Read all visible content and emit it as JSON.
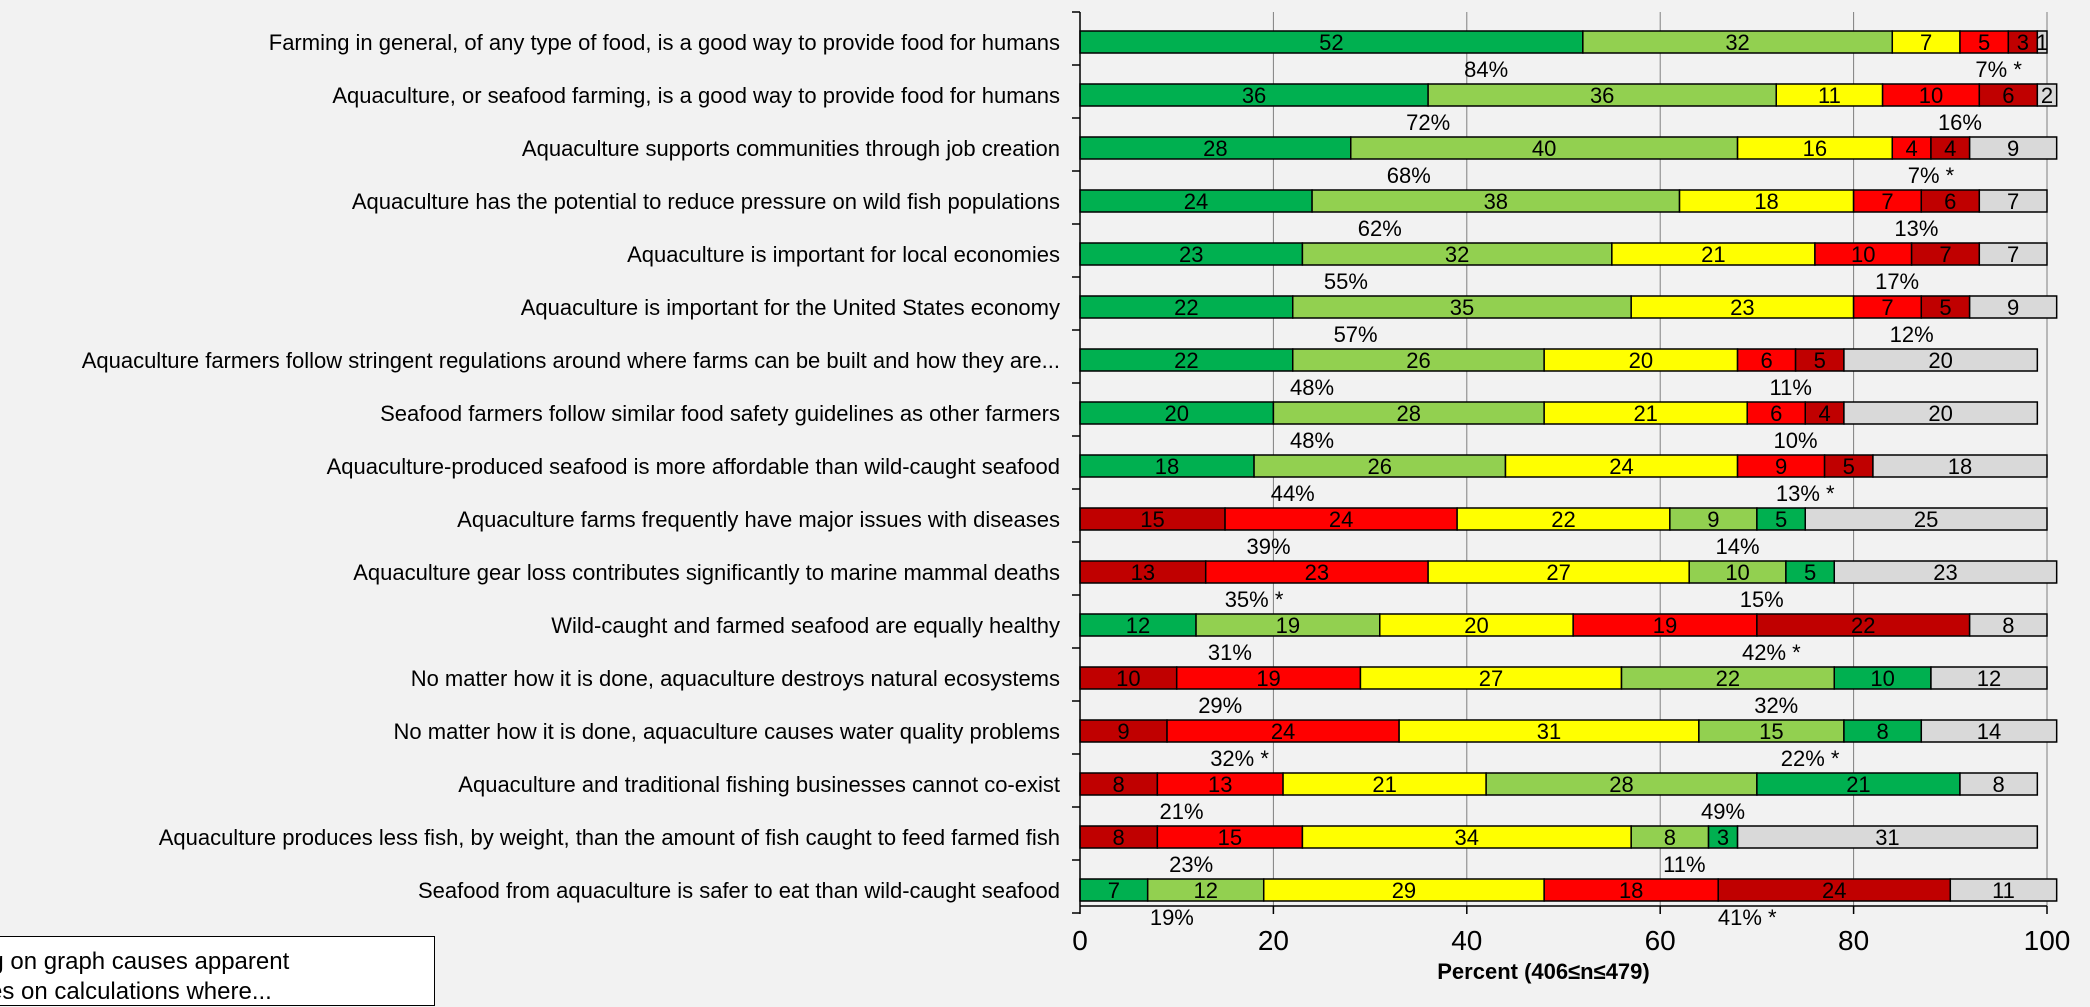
{
  "chart_data": {
    "type": "bar",
    "orientation": "horizontal",
    "stacked": true,
    "xlabel": "Percent (406≤n≤479)",
    "xlim": [
      0,
      100
    ],
    "xticks": [
      0,
      20,
      40,
      60,
      80,
      100
    ],
    "grid": true,
    "categories": [
      "Farming in general, of any type of food, is a good way to provide food for humans",
      "Aquaculture, or seafood farming, is a good way to provide food for humans",
      "Aquaculture supports communities through job creation",
      "Aquaculture has the potential to reduce pressure on wild fish populations",
      "Aquaculture is important for local economies",
      "Aquaculture is important for the United States economy",
      "Aquaculture farmers follow stringent regulations around where farms can be built and how they are...",
      "Seafood farmers follow similar food safety guidelines as other farmers",
      "Aquaculture-produced seafood is more affordable than wild-caught seafood",
      "Aquaculture farms frequently have major issues with diseases",
      "Aquaculture gear loss contributes significantly to marine mammal deaths",
      "Wild-caught and farmed seafood are equally healthy",
      "No matter how it is done, aquaculture destroys natural ecosystems",
      "No matter how it is done, aquaculture causes water quality problems",
      "Aquaculture and traditional fishing businesses cannot co-exist",
      "Aquaculture produces less fish, by weight, than the amount of fish caught to feed farmed fish",
      "Seafood from aquaculture is safer to eat than wild-caught seafood"
    ],
    "rows": [
      {
        "segments": [
          {
            "c": "dg",
            "v": 52
          },
          {
            "c": "lg",
            "v": 32
          },
          {
            "c": "y",
            "v": 7
          },
          {
            "c": "r",
            "v": 5
          },
          {
            "c": "dr",
            "v": 3
          },
          {
            "c": "gr",
            "v": 1
          }
        ],
        "left_sum": "84%",
        "right_sum": "7% *"
      },
      {
        "segments": [
          {
            "c": "dg",
            "v": 36
          },
          {
            "c": "lg",
            "v": 36
          },
          {
            "c": "y",
            "v": 11
          },
          {
            "c": "r",
            "v": 10
          },
          {
            "c": "dr",
            "v": 6
          },
          {
            "c": "gr",
            "v": 2
          }
        ],
        "left_sum": "72%",
        "right_sum": "16%"
      },
      {
        "segments": [
          {
            "c": "dg",
            "v": 28
          },
          {
            "c": "lg",
            "v": 40
          },
          {
            "c": "y",
            "v": 16
          },
          {
            "c": "r",
            "v": 4
          },
          {
            "c": "dr",
            "v": 4
          },
          {
            "c": "gr",
            "v": 9
          }
        ],
        "left_sum": "68%",
        "right_sum": "7% *"
      },
      {
        "segments": [
          {
            "c": "dg",
            "v": 24
          },
          {
            "c": "lg",
            "v": 38
          },
          {
            "c": "y",
            "v": 18
          },
          {
            "c": "r",
            "v": 7
          },
          {
            "c": "dr",
            "v": 6
          },
          {
            "c": "gr",
            "v": 7
          }
        ],
        "left_sum": "62%",
        "right_sum": "13%"
      },
      {
        "segments": [
          {
            "c": "dg",
            "v": 23
          },
          {
            "c": "lg",
            "v": 32
          },
          {
            "c": "y",
            "v": 21
          },
          {
            "c": "r",
            "v": 10
          },
          {
            "c": "dr",
            "v": 7
          },
          {
            "c": "gr",
            "v": 7
          }
        ],
        "left_sum": "55%",
        "right_sum": "17%"
      },
      {
        "segments": [
          {
            "c": "dg",
            "v": 22
          },
          {
            "c": "lg",
            "v": 35
          },
          {
            "c": "y",
            "v": 23
          },
          {
            "c": "r",
            "v": 7
          },
          {
            "c": "dr",
            "v": 5
          },
          {
            "c": "gr",
            "v": 9
          }
        ],
        "left_sum": "57%",
        "right_sum": "12%"
      },
      {
        "segments": [
          {
            "c": "dg",
            "v": 22
          },
          {
            "c": "lg",
            "v": 26
          },
          {
            "c": "y",
            "v": 20
          },
          {
            "c": "r",
            "v": 6
          },
          {
            "c": "dr",
            "v": 5
          },
          {
            "c": "gr",
            "v": 20
          }
        ],
        "left_sum": "48%",
        "right_sum": "11%"
      },
      {
        "segments": [
          {
            "c": "dg",
            "v": 20
          },
          {
            "c": "lg",
            "v": 28
          },
          {
            "c": "y",
            "v": 21
          },
          {
            "c": "r",
            "v": 6
          },
          {
            "c": "dr",
            "v": 4
          },
          {
            "c": "gr",
            "v": 20
          }
        ],
        "left_sum": "48%",
        "right_sum": "10%"
      },
      {
        "segments": [
          {
            "c": "dg",
            "v": 18
          },
          {
            "c": "lg",
            "v": 26
          },
          {
            "c": "y",
            "v": 24
          },
          {
            "c": "r",
            "v": 9
          },
          {
            "c": "dr",
            "v": 5
          },
          {
            "c": "gr",
            "v": 18
          }
        ],
        "left_sum": "44%",
        "right_sum": "13% *"
      },
      {
        "segments": [
          {
            "c": "dr",
            "v": 15
          },
          {
            "c": "r",
            "v": 24
          },
          {
            "c": "y",
            "v": 22
          },
          {
            "c": "lg",
            "v": 9
          },
          {
            "c": "dg",
            "v": 5
          },
          {
            "c": "gr",
            "v": 25
          }
        ],
        "left_sum": "39%",
        "right_sum": "14%"
      },
      {
        "segments": [
          {
            "c": "dr",
            "v": 13
          },
          {
            "c": "r",
            "v": 23
          },
          {
            "c": "y",
            "v": 27
          },
          {
            "c": "lg",
            "v": 10
          },
          {
            "c": "dg",
            "v": 5
          },
          {
            "c": "gr",
            "v": 23
          }
        ],
        "left_sum": "35% *",
        "right_sum": "15%"
      },
      {
        "segments": [
          {
            "c": "dg",
            "v": 12
          },
          {
            "c": "lg",
            "v": 19
          },
          {
            "c": "y",
            "v": 20
          },
          {
            "c": "r",
            "v": 19
          },
          {
            "c": "dr",
            "v": 22
          },
          {
            "c": "gr",
            "v": 8
          }
        ],
        "left_sum": "31%",
        "right_sum": "42% *"
      },
      {
        "segments": [
          {
            "c": "dr",
            "v": 10
          },
          {
            "c": "r",
            "v": 19
          },
          {
            "c": "y",
            "v": 27
          },
          {
            "c": "lg",
            "v": 22
          },
          {
            "c": "dg",
            "v": 10
          },
          {
            "c": "gr",
            "v": 12
          }
        ],
        "left_sum": "29%",
        "right_sum": "32%"
      },
      {
        "segments": [
          {
            "c": "dr",
            "v": 9
          },
          {
            "c": "r",
            "v": 24
          },
          {
            "c": "y",
            "v": 31
          },
          {
            "c": "lg",
            "v": 15
          },
          {
            "c": "dg",
            "v": 8
          },
          {
            "c": "gr",
            "v": 14
          }
        ],
        "left_sum": "32% *",
        "right_sum": "22% *"
      },
      {
        "segments": [
          {
            "c": "dr",
            "v": 8
          },
          {
            "c": "r",
            "v": 13
          },
          {
            "c": "y",
            "v": 21
          },
          {
            "c": "lg",
            "v": 28
          },
          {
            "c": "dg",
            "v": 21
          },
          {
            "c": "gr",
            "v": 8
          }
        ],
        "left_sum": "21%",
        "right_sum": "49%"
      },
      {
        "segments": [
          {
            "c": "dr",
            "v": 8
          },
          {
            "c": "r",
            "v": 15
          },
          {
            "c": "y",
            "v": 34
          },
          {
            "c": "lg",
            "v": 8
          },
          {
            "c": "dg",
            "v": 3
          },
          {
            "c": "gr",
            "v": 31
          }
        ],
        "left_sum": "23%",
        "right_sum": "11%"
      },
      {
        "segments": [
          {
            "c": "dg",
            "v": 7
          },
          {
            "c": "lg",
            "v": 12
          },
          {
            "c": "y",
            "v": 29
          },
          {
            "c": "r",
            "v": 18
          },
          {
            "c": "dr",
            "v": 24
          },
          {
            "c": "gr",
            "v": 11
          }
        ],
        "left_sum": "19%",
        "right_sum": "41% *"
      }
    ],
    "colors": {
      "dg": "#00b050",
      "lg": "#92d050",
      "y": "#ffff00",
      "r": "#ff0000",
      "dr": "#c00000",
      "gr": "#d9d9d9"
    }
  },
  "note": {
    "line1": "nding on graph causes apparent",
    "line2": "ancies on calculations where..."
  }
}
